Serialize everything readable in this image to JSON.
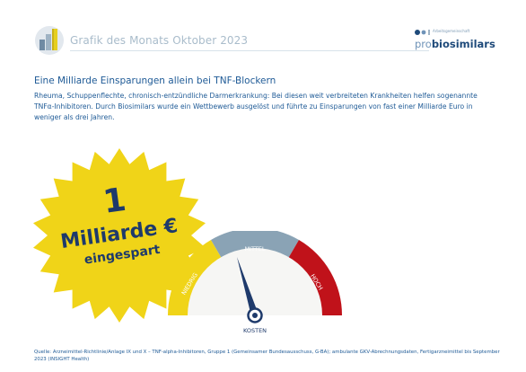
{
  "header": {
    "title": "Grafik des Monats Oktober 2023",
    "icon": "bar-chart-icon"
  },
  "logo": {
    "small_text": "Arbeitsgemeinschaft",
    "pro": "pro",
    "biosimilars": "biosimilars"
  },
  "article": {
    "headline": "Eine Milliarde Einsparungen allein bei TNF-Blockern",
    "body": "Rheuma, Schuppenflechte, chronisch-entzündliche Darmerkrankung: Bei diesen weit verbreiteten Krankheiten helfen sogenannte TNFα-Inhibitoren. Durch Biosimilars wurde ein Wettbewerb ausgelöst und führte zu Einsparungen von fast einer Milliarde Euro in weniger als drei Jahren."
  },
  "badge": {
    "number": "1",
    "line1": "Milliarde €",
    "line2": "eingespart"
  },
  "gauge": {
    "segments": [
      "NIEDRIG",
      "MITTEL",
      "HOCH"
    ],
    "label": "KOSTEN",
    "colors": {
      "low": "#f0d418",
      "mid": "#8aa3b5",
      "high": "#c0121a",
      "needle": "#1e3a6b"
    }
  },
  "source": "Quelle: Arzneimittel-Richtlinie/Anlage IX und X – TNF-alpha-Inhibitoren, Gruppe 1 (Gemeinsamer Bundesausschuss, G-BA); ambulante GKV-Abrechnungsdaten, Fertigarzneimittel bis September 2023 (INSIGHT Health)"
}
